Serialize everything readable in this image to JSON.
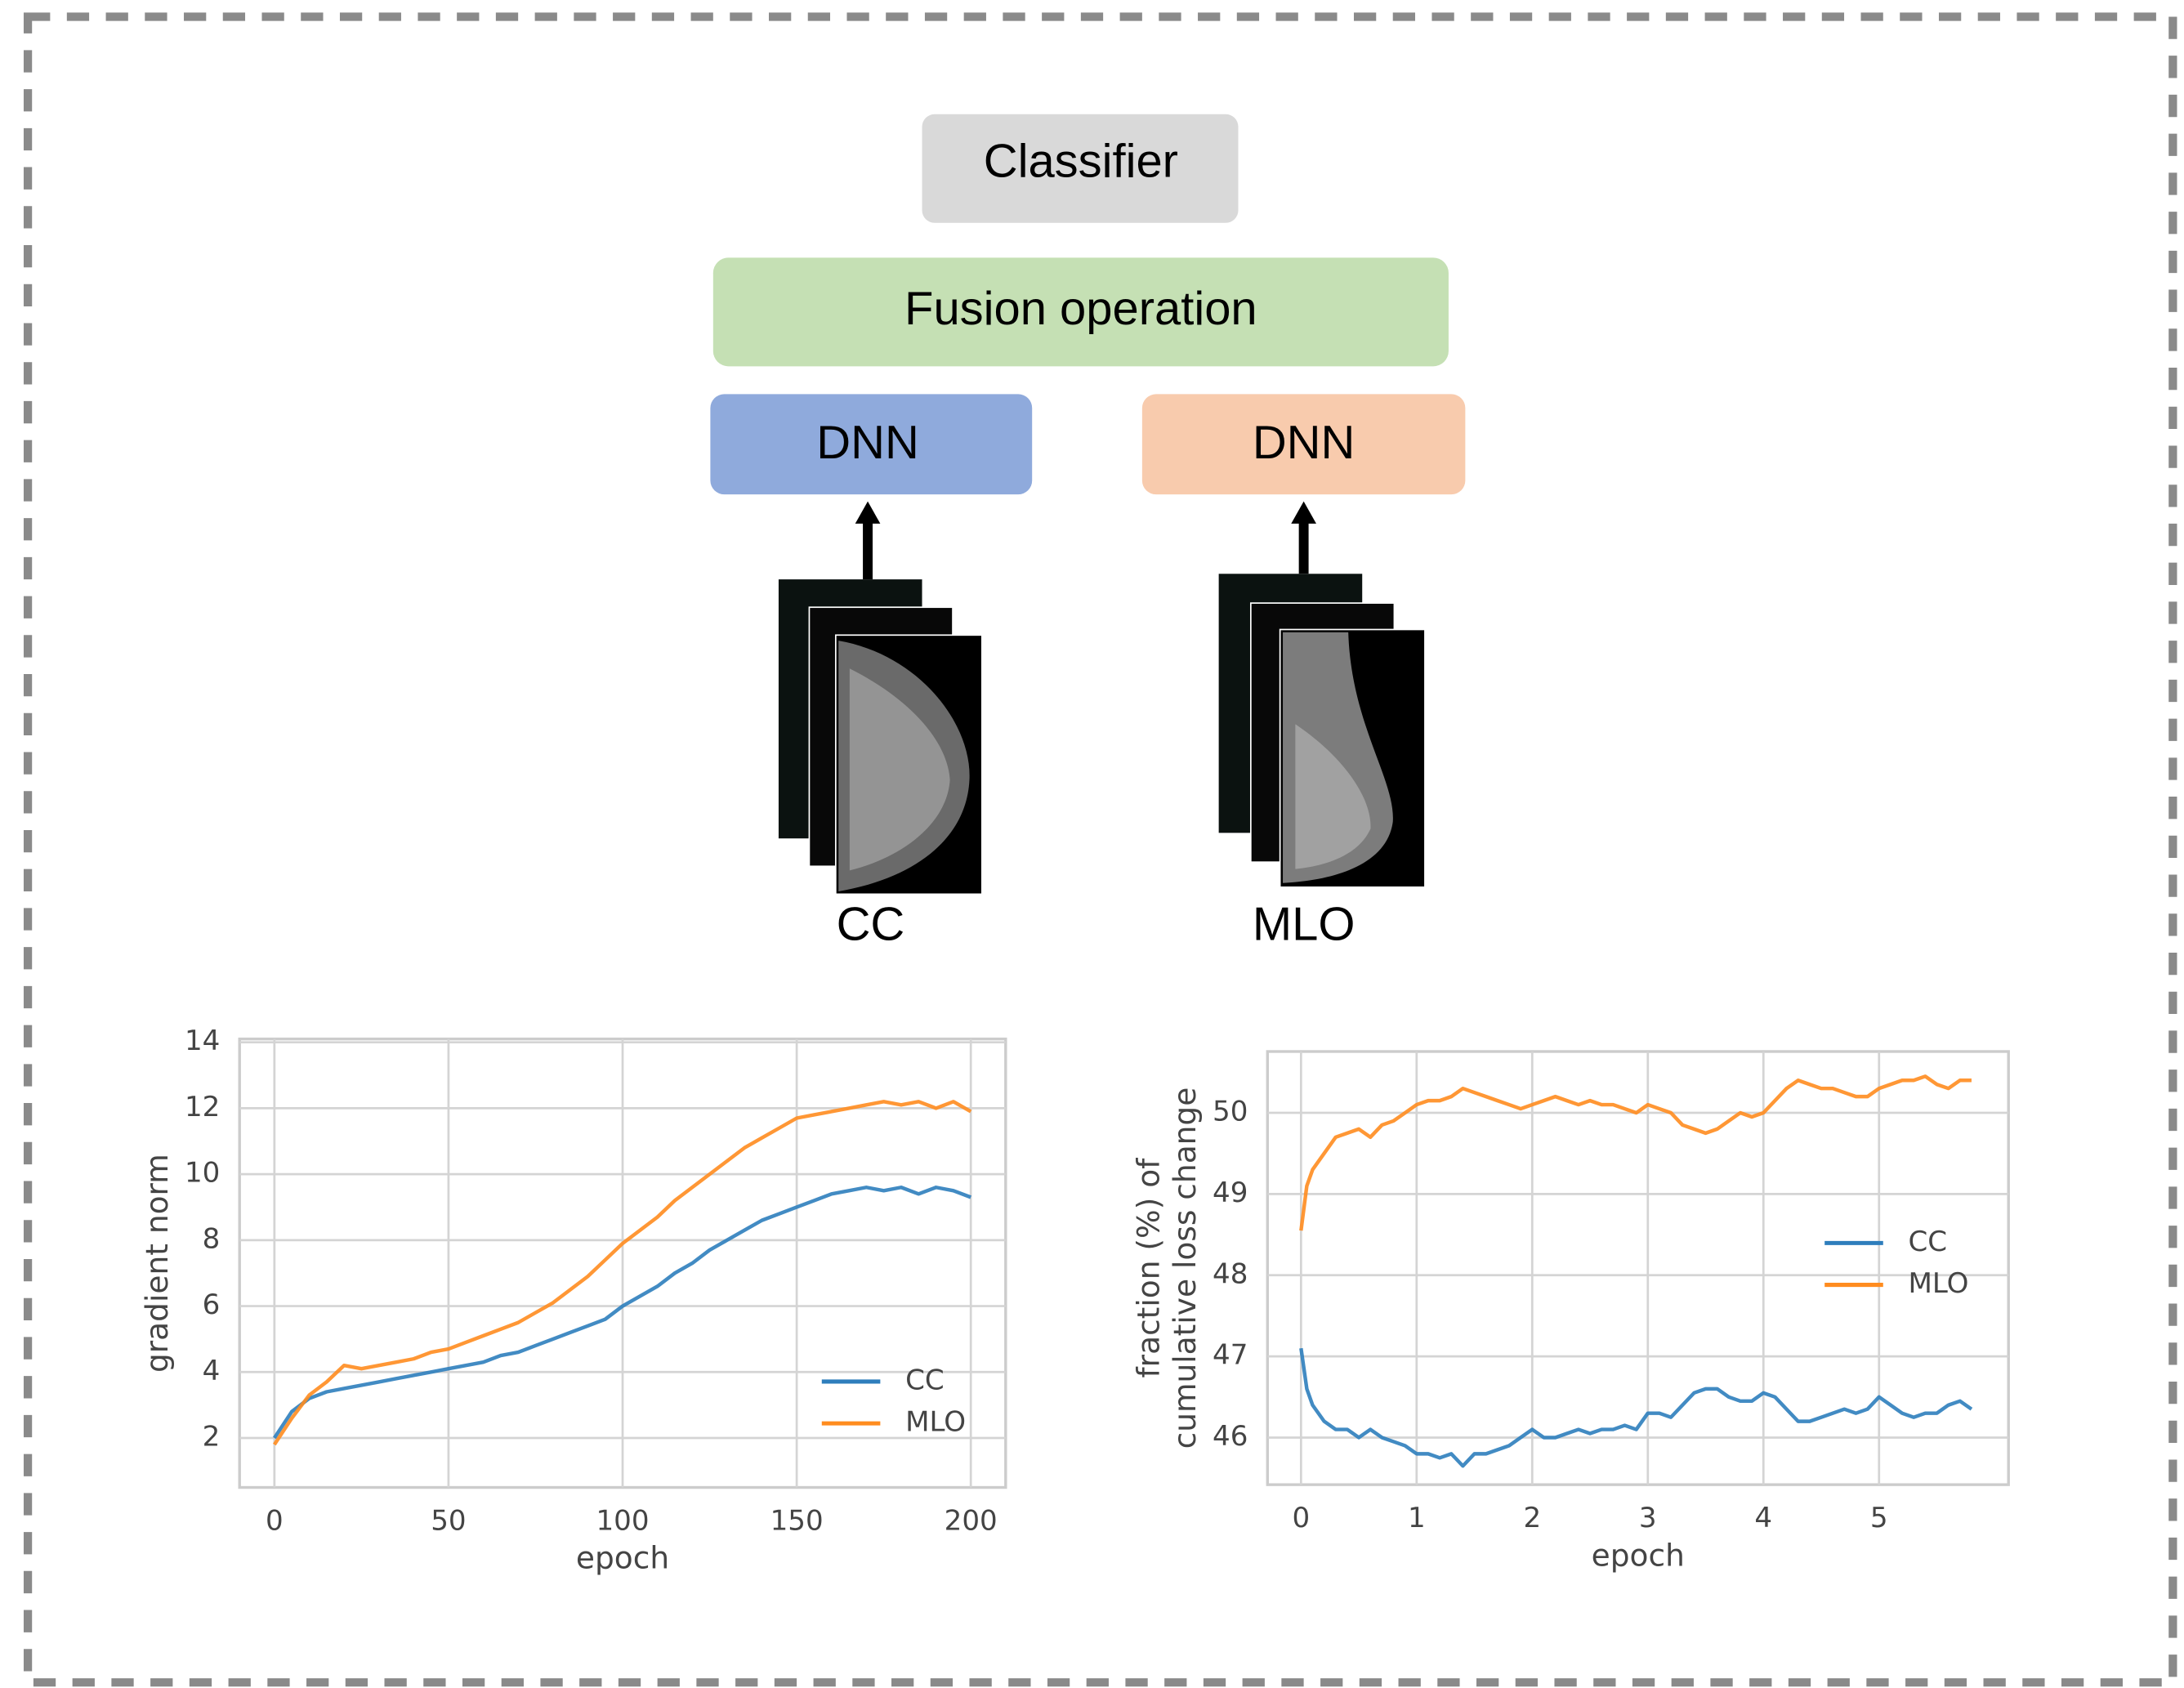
{
  "diagram": {
    "classifier": "Classifier",
    "fusion": "Fusion operation",
    "dnn_left": "DNN",
    "dnn_right": "DNN",
    "view_left": "CC",
    "view_right": "MLO"
  },
  "chart_data": [
    {
      "type": "line",
      "xlabel": "epoch",
      "ylabel": "gradient norm",
      "x": [
        0,
        5,
        10,
        15,
        20,
        25,
        30,
        35,
        40,
        45,
        50,
        55,
        60,
        65,
        70,
        75,
        80,
        85,
        90,
        95,
        100,
        105,
        110,
        115,
        120,
        125,
        130,
        135,
        140,
        145,
        150,
        155,
        160,
        165,
        170,
        175,
        180,
        185,
        190,
        195,
        200
      ],
      "series": [
        {
          "name": "CC",
          "color": "#2e7ebc",
          "values": [
            2.0,
            2.8,
            3.2,
            3.4,
            3.5,
            3.6,
            3.7,
            3.8,
            3.9,
            4.0,
            4.1,
            4.2,
            4.3,
            4.5,
            4.6,
            4.8,
            5.0,
            5.2,
            5.4,
            5.6,
            6.0,
            6.3,
            6.6,
            7.0,
            7.3,
            7.7,
            8.0,
            8.3,
            8.6,
            8.8,
            9.0,
            9.2,
            9.4,
            9.5,
            9.6,
            9.5,
            9.6,
            9.4,
            9.6,
            9.5,
            9.3
          ]
        },
        {
          "name": "MLO",
          "color": "#ff8c1f",
          "values": [
            1.8,
            2.6,
            3.3,
            3.7,
            4.2,
            4.1,
            4.2,
            4.3,
            4.4,
            4.6,
            4.7,
            4.9,
            5.1,
            5.3,
            5.5,
            5.8,
            6.1,
            6.5,
            6.9,
            7.4,
            7.9,
            8.3,
            8.7,
            9.2,
            9.6,
            10.0,
            10.4,
            10.8,
            11.1,
            11.4,
            11.7,
            11.8,
            11.9,
            12.0,
            12.1,
            12.2,
            12.1,
            12.2,
            12.0,
            12.2,
            11.9
          ]
        }
      ],
      "xlim": [
        -10,
        210
      ],
      "ylim": [
        0.5,
        14.1
      ],
      "xticks": [
        0,
        50,
        100,
        150,
        200
      ],
      "yticks": [
        2,
        4,
        6,
        8,
        10,
        12,
        14
      ],
      "grid": true,
      "legend": "lower right"
    },
    {
      "type": "line",
      "xlabel": "epoch",
      "ylabel": [
        "fraction (%) of",
        "cumulative loss change"
      ],
      "x": [
        0,
        0.05,
        0.1,
        0.2,
        0.3,
        0.4,
        0.5,
        0.6,
        0.7,
        0.8,
        0.9,
        1.0,
        1.1,
        1.2,
        1.3,
        1.4,
        1.5,
        1.6,
        1.7,
        1.8,
        1.9,
        2.0,
        2.1,
        2.2,
        2.3,
        2.4,
        2.5,
        2.6,
        2.7,
        2.8,
        2.9,
        3.0,
        3.1,
        3.2,
        3.3,
        3.4,
        3.5,
        3.6,
        3.7,
        3.8,
        3.9,
        4.0,
        4.1,
        4.2,
        4.3,
        4.4,
        4.5,
        4.6,
        4.7,
        4.8,
        4.9,
        5.0,
        5.1,
        5.2,
        5.3,
        5.4,
        5.5,
        5.6,
        5.7,
        5.8
      ],
      "series": [
        {
          "name": "CC",
          "color": "#2e7ebc",
          "values": [
            47.1,
            46.6,
            46.4,
            46.2,
            46.1,
            46.1,
            46.0,
            46.1,
            46.0,
            45.95,
            45.9,
            45.8,
            45.8,
            45.75,
            45.8,
            45.65,
            45.8,
            45.8,
            45.85,
            45.9,
            46.0,
            46.1,
            46.0,
            46.0,
            46.05,
            46.1,
            46.05,
            46.1,
            46.1,
            46.15,
            46.1,
            46.3,
            46.3,
            46.25,
            46.4,
            46.55,
            46.6,
            46.6,
            46.5,
            46.45,
            46.45,
            46.55,
            46.5,
            46.35,
            46.2,
            46.2,
            46.25,
            46.3,
            46.35,
            46.3,
            46.35,
            46.5,
            46.4,
            46.3,
            46.25,
            46.3,
            46.3,
            46.4,
            46.45,
            46.35
          ]
        },
        {
          "name": "MLO",
          "color": "#ff8c1f",
          "values": [
            48.55,
            49.1,
            49.3,
            49.5,
            49.7,
            49.75,
            49.8,
            49.7,
            49.85,
            49.9,
            50.0,
            50.1,
            50.15,
            50.15,
            50.2,
            50.3,
            50.25,
            50.2,
            50.15,
            50.1,
            50.05,
            50.1,
            50.15,
            50.2,
            50.15,
            50.1,
            50.15,
            50.1,
            50.1,
            50.05,
            50.0,
            50.1,
            50.05,
            50.0,
            49.85,
            49.8,
            49.75,
            49.8,
            49.9,
            50.0,
            49.95,
            50.0,
            50.15,
            50.3,
            50.4,
            50.35,
            50.3,
            50.3,
            50.25,
            50.2,
            50.2,
            50.3,
            50.35,
            50.4,
            50.4,
            50.45,
            50.35,
            50.3,
            50.4,
            50.4
          ]
        }
      ],
      "xlim": [
        -0.29,
        6.12
      ],
      "ylim": [
        45.42,
        50.755
      ],
      "xticks": [
        0,
        1,
        2,
        3,
        4,
        5
      ],
      "yticks": [
        46,
        47,
        48,
        49,
        50
      ],
      "grid": true,
      "legend": "center right"
    }
  ]
}
